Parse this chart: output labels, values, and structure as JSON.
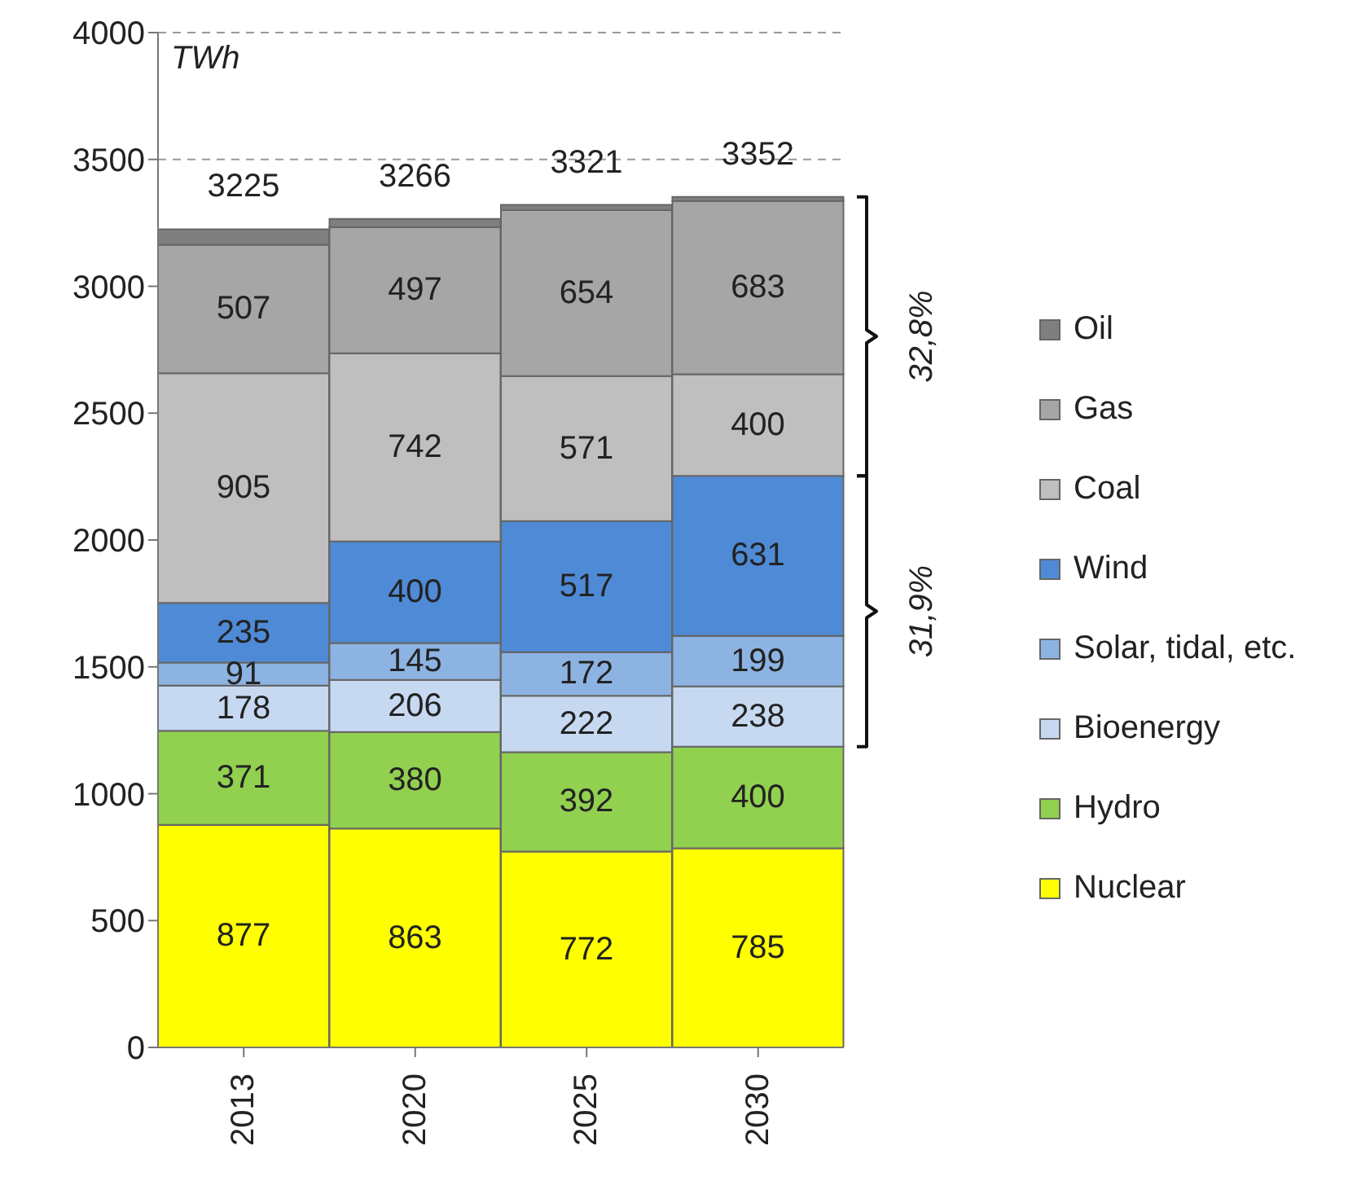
{
  "chart_data": {
    "type": "bar",
    "stacked": true,
    "categories": [
      "2013",
      "2020",
      "2025",
      "2030"
    ],
    "series": [
      {
        "name": "Nuclear",
        "color": "#ffff00",
        "values": [
          877,
          863,
          772,
          785
        ],
        "value_labels": [
          "877",
          "863",
          "772",
          "785"
        ]
      },
      {
        "name": "Hydro",
        "color": "#92d050",
        "values": [
          371,
          380,
          392,
          400
        ],
        "value_labels": [
          "371",
          "380",
          "392",
          "400"
        ]
      },
      {
        "name": "Bioenergy",
        "color": "#c6d9f1",
        "values": [
          178,
          206,
          222,
          238
        ],
        "value_labels": [
          "178",
          "206",
          "222",
          "238"
        ]
      },
      {
        "name": "Solar, tidal, etc.",
        "color": "#8db3e2",
        "values": [
          91,
          145,
          172,
          199
        ],
        "value_labels": [
          "91",
          "145",
          "172",
          "199"
        ]
      },
      {
        "name": "Wind",
        "color": "#4f8ad6",
        "values": [
          235,
          400,
          517,
          631
        ],
        "value_labels": [
          "235",
          "400",
          "517",
          "631"
        ]
      },
      {
        "name": "Coal",
        "color": "#bfbfbf",
        "values": [
          905,
          742,
          571,
          400
        ],
        "value_labels": [
          "905",
          "742",
          "571",
          "400"
        ]
      },
      {
        "name": "Gas",
        "color": "#a6a6a6",
        "values": [
          507,
          497,
          654,
          683
        ],
        "value_labels": [
          "507",
          "497",
          "654",
          "683"
        ]
      },
      {
        "name": "Oil",
        "color": "#7f7f7f",
        "values": [
          61,
          33,
          21,
          16
        ],
        "value_labels": [
          null,
          null,
          null,
          null
        ]
      }
    ],
    "totals": [
      "3225",
      "3266",
      "3321",
      "3352"
    ],
    "ylim": [
      0,
      4000
    ],
    "yticks": [
      0,
      500,
      1000,
      1500,
      2000,
      2500,
      3000,
      3500,
      4000
    ],
    "grid": "y",
    "legend": "right",
    "annotations": [
      "TWh",
      "32,8%",
      "31,9%"
    ]
  }
}
